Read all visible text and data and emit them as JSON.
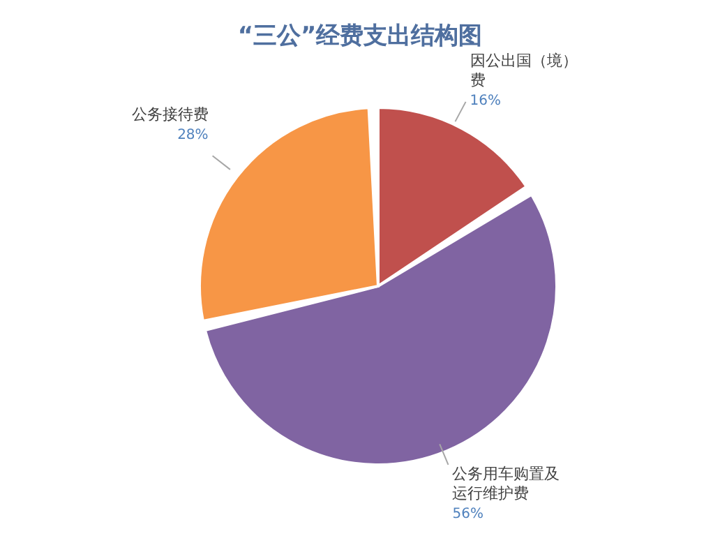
{
  "chart_data": {
    "type": "pie",
    "title": "“三公”经费支出结构图",
    "categories": [
      "因公出国（境）费",
      "公务用车购置及运行维护费",
      "公务接待费"
    ],
    "values": [
      16,
      56,
      28
    ],
    "colors": [
      "#c0504d",
      "#8064a2",
      "#f79646"
    ],
    "value_labels": [
      "16%",
      "56%",
      "28%"
    ],
    "legend": false
  }
}
